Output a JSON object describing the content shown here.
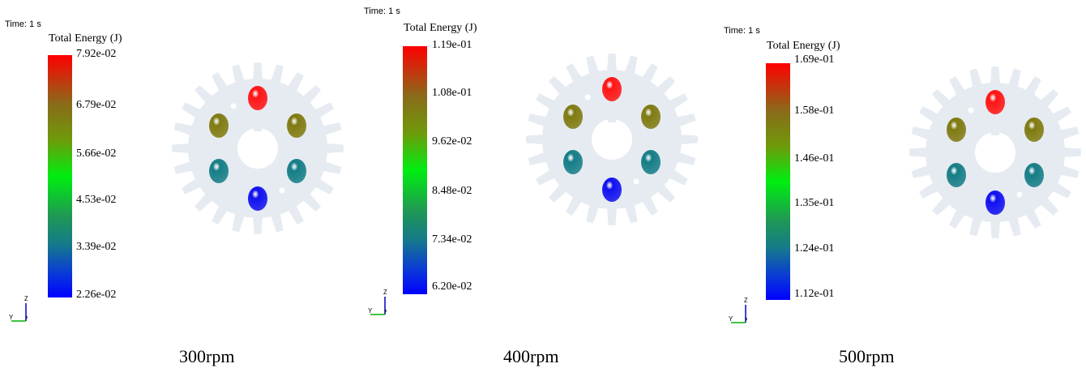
{
  "panels": [
    {
      "time_label": "Time: 1 s",
      "legend_title": "Total Energy (J)",
      "ticks": [
        "7.92e-02",
        "6.79e-02",
        "5.66e-02",
        "4.53e-02",
        "3.39e-02",
        "2.26e-02"
      ],
      "axis_z": "Z",
      "axis_y": "Y",
      "axis_x": "X",
      "caption": "300rpm"
    },
    {
      "time_label": "Time: 1 s",
      "legend_title": "Total Energy (J)",
      "ticks": [
        "1.19e-01",
        "1.08e-01",
        "9.62e-02",
        "8.48e-02",
        "7.34e-02",
        "6.20e-02"
      ],
      "axis_z": "Z",
      "axis_y": "Y",
      "axis_x": "X",
      "caption": "400rpm"
    },
    {
      "time_label": "Time: 1 s",
      "legend_title": "Total Energy (J)",
      "ticks": [
        "1.69e-01",
        "1.58e-01",
        "1.46e-01",
        "1.35e-01",
        "1.24e-01",
        "1.12e-01"
      ],
      "axis_z": "Z",
      "axis_y": "Y",
      "axis_x": "X",
      "caption": "500rpm"
    }
  ],
  "colors": {
    "gear_body": "#e6ebf2",
    "ball_top": "#ff1414",
    "ball_upper": "#7f7a10",
    "ball_lower": "#157d86",
    "ball_bottom": "#1010f0",
    "axis_y": "#00b000",
    "axis_z": "#0000c0"
  },
  "gear": {
    "teeth": 24
  }
}
